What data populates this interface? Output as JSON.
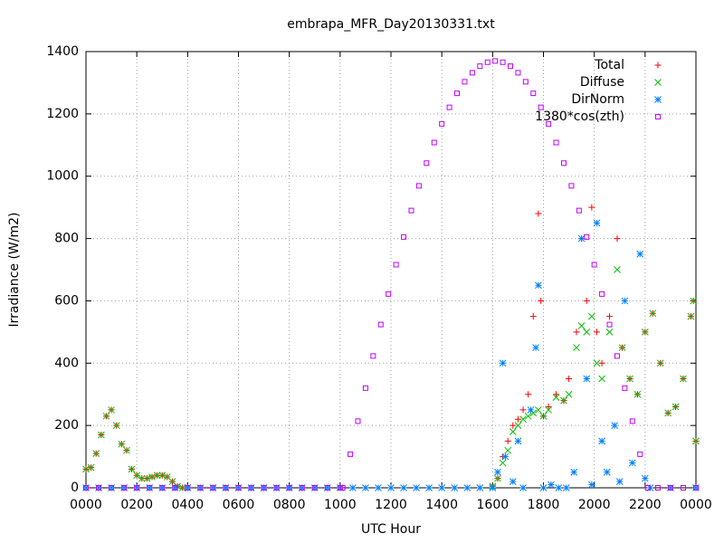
{
  "chart_data": {
    "type": "scatter",
    "title": "embrapa_MFR_Day20130331.txt",
    "xlabel": "UTC Hour",
    "ylabel": "Irradiance (W/m2)",
    "xlim": [
      0,
      24
    ],
    "ylim": [
      0,
      1400
    ],
    "xticks": [
      {
        "value": 0,
        "label": "0000"
      },
      {
        "value": 2,
        "label": "0200"
      },
      {
        "value": 4,
        "label": "0400"
      },
      {
        "value": 6,
        "label": "0600"
      },
      {
        "value": 8,
        "label": "0800"
      },
      {
        "value": 10,
        "label": "1000"
      },
      {
        "value": 12,
        "label": "1200"
      },
      {
        "value": 14,
        "label": "1400"
      },
      {
        "value": 16,
        "label": "1600"
      },
      {
        "value": 18,
        "label": "1800"
      },
      {
        "value": 20,
        "label": "2000"
      },
      {
        "value": 22,
        "label": "2200"
      },
      {
        "value": 24,
        "label": "0000"
      }
    ],
    "yticks": [
      0,
      200,
      400,
      600,
      800,
      1000,
      1200,
      1400
    ],
    "grid": true,
    "legend": "top-right",
    "series": [
      {
        "name": "Total",
        "color": "#ff0000",
        "marker": "plus",
        "x": [
          0.0,
          0.2,
          0.4,
          0.6,
          0.8,
          1.0,
          1.2,
          1.4,
          1.6,
          1.8,
          2.0,
          2.2,
          2.4,
          2.6,
          2.8,
          3.0,
          3.2,
          3.4,
          3.6,
          3.8,
          16.0,
          16.2,
          16.4,
          16.6,
          16.8,
          17.0,
          17.2,
          17.4,
          17.6,
          17.8,
          17.9,
          18.0,
          18.2,
          18.5,
          18.8,
          19.0,
          19.3,
          19.5,
          19.7,
          19.9,
          20.1,
          20.3,
          20.6,
          20.9,
          21.1,
          21.4,
          21.7,
          22.0,
          22.3,
          22.6,
          22.9,
          23.2,
          23.5,
          23.8,
          23.9,
          24.0
        ],
        "values": [
          60,
          65,
          110,
          170,
          230,
          250,
          200,
          140,
          120,
          60,
          40,
          30,
          30,
          35,
          40,
          40,
          35,
          20,
          5,
          0,
          5,
          30,
          100,
          150,
          200,
          220,
          250,
          300,
          550,
          880,
          600,
          230,
          260,
          300,
          280,
          350,
          500,
          800,
          600,
          900,
          500,
          400,
          550,
          800,
          450,
          350,
          300,
          500,
          560,
          400,
          240,
          260,
          350,
          550,
          600,
          150
        ]
      },
      {
        "name": "Diffuse",
        "color": "#00c000",
        "marker": "cross",
        "x": [
          0.0,
          0.2,
          0.4,
          0.6,
          0.8,
          1.0,
          1.2,
          1.4,
          1.6,
          1.8,
          2.0,
          2.2,
          2.4,
          2.6,
          2.8,
          3.0,
          3.2,
          3.4,
          3.6,
          3.8,
          16.0,
          16.2,
          16.4,
          16.6,
          16.8,
          17.0,
          17.2,
          17.4,
          17.6,
          17.8,
          18.0,
          18.2,
          18.5,
          18.8,
          19.0,
          19.3,
          19.5,
          19.7,
          19.9,
          20.1,
          20.3,
          20.6,
          20.9,
          21.1,
          21.4,
          21.7,
          22.0,
          22.3,
          22.6,
          22.9,
          23.2,
          23.5,
          23.8,
          23.9,
          24.0
        ],
        "values": [
          60,
          65,
          110,
          170,
          230,
          250,
          200,
          140,
          120,
          60,
          40,
          30,
          30,
          35,
          40,
          40,
          35,
          20,
          5,
          0,
          5,
          30,
          80,
          120,
          180,
          200,
          220,
          230,
          240,
          250,
          230,
          250,
          290,
          280,
          300,
          450,
          520,
          500,
          550,
          400,
          350,
          500,
          700,
          450,
          350,
          300,
          500,
          560,
          400,
          240,
          260,
          350,
          550,
          600,
          150
        ]
      },
      {
        "name": "DirNorm",
        "color": "#0080ff",
        "marker": "star",
        "x": [
          0.0,
          0.5,
          1.0,
          1.5,
          2.0,
          2.5,
          3.0,
          3.5,
          4.0,
          4.5,
          5.0,
          5.5,
          6.0,
          6.5,
          7.0,
          7.5,
          8.0,
          8.5,
          9.0,
          9.5,
          10.0,
          10.5,
          11.0,
          11.5,
          12.0,
          12.5,
          13.0,
          13.5,
          14.0,
          14.5,
          15.0,
          15.5,
          16.0,
          16.2,
          16.4,
          16.5,
          16.8,
          17.0,
          17.2,
          17.5,
          17.7,
          17.8,
          18.0,
          18.3,
          18.6,
          18.9,
          19.2,
          19.5,
          19.7,
          19.9,
          20.1,
          20.3,
          20.5,
          20.8,
          21.0,
          21.2,
          21.5,
          21.8,
          22.0,
          22.2,
          23.0,
          24.0
        ],
        "values": [
          0,
          0,
          0,
          0,
          0,
          0,
          0,
          0,
          0,
          0,
          0,
          0,
          0,
          0,
          0,
          0,
          0,
          0,
          0,
          0,
          0,
          0,
          0,
          0,
          0,
          0,
          0,
          0,
          0,
          0,
          0,
          0,
          0,
          50,
          400,
          100,
          20,
          150,
          0,
          250,
          450,
          650,
          0,
          10,
          0,
          0,
          50,
          800,
          350,
          10,
          850,
          150,
          50,
          200,
          20,
          600,
          80,
          750,
          30,
          0,
          0,
          0
        ]
      },
      {
        "name": "1380*cos(zth)",
        "color": "#c000ff",
        "marker": "square",
        "x": [
          0.0,
          0.5,
          1.0,
          1.5,
          2.0,
          2.5,
          3.0,
          3.5,
          4.0,
          4.5,
          5.0,
          5.5,
          6.0,
          6.5,
          7.0,
          7.5,
          8.0,
          8.5,
          9.0,
          9.5,
          10.0,
          10.1,
          10.4,
          10.7,
          11.0,
          11.3,
          11.6,
          11.9,
          12.2,
          12.5,
          12.8,
          13.1,
          13.4,
          13.7,
          14.0,
          14.3,
          14.6,
          14.9,
          15.2,
          15.5,
          15.8,
          16.1,
          16.4,
          16.7,
          17.0,
          17.3,
          17.6,
          17.9,
          18.2,
          18.5,
          18.8,
          19.1,
          19.4,
          19.7,
          20.0,
          20.3,
          20.6,
          20.9,
          21.2,
          21.5,
          21.8,
          22.1,
          22.5,
          23.0,
          23.5,
          24.0
        ],
        "values": [
          0,
          0,
          0,
          0,
          0,
          0,
          0,
          0,
          0,
          0,
          0,
          0,
          0,
          0,
          0,
          0,
          0,
          0,
          0,
          0,
          0,
          0,
          108,
          214,
          320,
          423,
          524,
          622,
          716,
          805,
          890,
          969,
          1042,
          1108,
          1168,
          1221,
          1266,
          1303,
          1332,
          1353,
          1366,
          1370,
          1366,
          1353,
          1332,
          1303,
          1266,
          1221,
          1168,
          1108,
          1042,
          969,
          890,
          805,
          716,
          622,
          524,
          423,
          320,
          214,
          108,
          0,
          0,
          0,
          0,
          0
        ]
      }
    ]
  }
}
